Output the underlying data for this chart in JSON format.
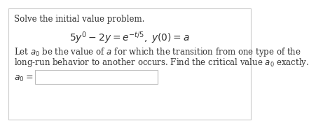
{
  "title_line": "Solve the initial value problem.",
  "equation": "$5y' - 2y = e^{-t/5}, \\; y(0) = a$",
  "body_line1": "Let $a_0$ be the value of $a$ for which the transition from one type of the",
  "body_line2": "long-run behavior to another occurs. Find the critical value $a_0$ exactly.",
  "label": "$a_0 =$",
  "bg_color": "#ffffff",
  "text_color": "#333333",
  "box_color": "#ffffff",
  "box_edge_color": "#bbbbbb",
  "font_size_title": 8.5,
  "font_size_eq": 10.0,
  "font_size_body": 8.5,
  "font_size_label": 9.0,
  "border_color": "#cccccc"
}
